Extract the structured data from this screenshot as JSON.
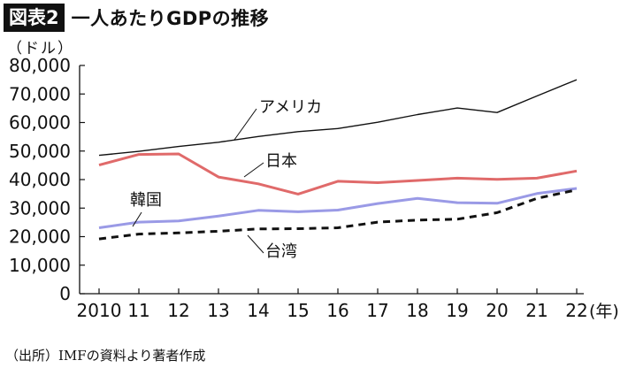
{
  "header": {
    "badge": "図表2",
    "title": "一人あたりGDPの推移"
  },
  "source": "（出所）IMFの資料より著者作成",
  "chart_data": {
    "type": "line",
    "unit_label": "（ドル）",
    "x_suffix": "(年)",
    "categories": [
      "2010",
      "11",
      "12",
      "13",
      "14",
      "15",
      "16",
      "17",
      "18",
      "19",
      "20",
      "21",
      "22"
    ],
    "ylim": [
      0,
      80000
    ],
    "yticks": [
      0,
      10000,
      20000,
      30000,
      40000,
      50000,
      60000,
      70000,
      80000
    ],
    "ytick_labels": [
      "0",
      "10,000",
      "20,000",
      "30,000",
      "40,000",
      "50,000",
      "60,000",
      "70,000",
      "80,000"
    ],
    "grid": false,
    "series": [
      {
        "name": "アメリカ",
        "color": "#111111",
        "style": "solid",
        "values": [
          48500,
          49900,
          51600,
          53100,
          55100,
          56800,
          57900,
          60100,
          62800,
          65100,
          63500,
          69300,
          75000
        ]
      },
      {
        "name": "日本",
        "color": "#e06a6a",
        "style": "solid",
        "values": [
          45100,
          48800,
          49000,
          40900,
          38500,
          34900,
          39400,
          38900,
          39700,
          40500,
          40100,
          40500,
          43000
        ]
      },
      {
        "name": "韓国",
        "color": "#9a9ae6",
        "style": "solid",
        "values": [
          23100,
          25100,
          25500,
          27200,
          29200,
          28700,
          29300,
          31600,
          33400,
          31900,
          31700,
          35100,
          36900
        ]
      },
      {
        "name": "台湾",
        "color": "#111111",
        "style": "dashed",
        "values": [
          19200,
          20900,
          21300,
          21900,
          22700,
          22800,
          23100,
          25100,
          25800,
          26100,
          28400,
          33400,
          36400
        ]
      }
    ]
  }
}
